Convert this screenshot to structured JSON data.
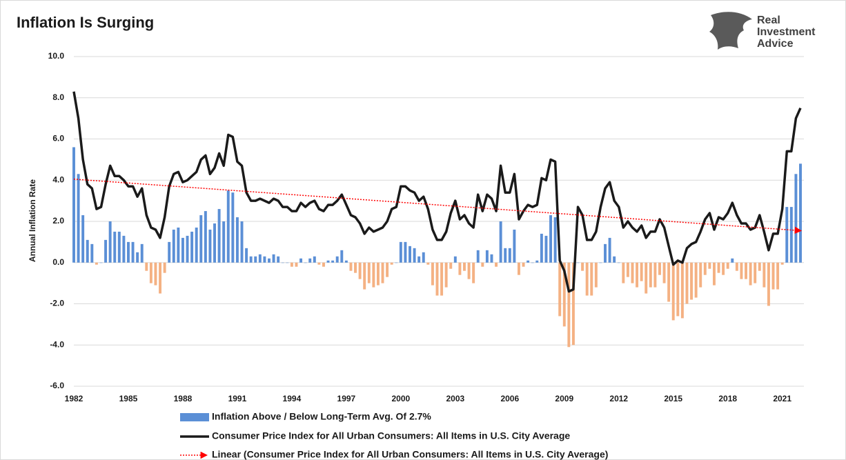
{
  "chart_data": {
    "type": "bar",
    "title": "Inflation Is Surging",
    "logo": [
      "Real",
      "Investment",
      "Advice"
    ],
    "y_label": "Annual Inflation Rate",
    "ylim": [
      -6,
      10
    ],
    "yticks": [
      {
        "value": 10,
        "label": "10.0"
      },
      {
        "value": 8,
        "label": "8.0"
      },
      {
        "value": 6,
        "label": "6.0"
      },
      {
        "value": 4,
        "label": "4.0"
      },
      {
        "value": 2,
        "label": "2.0"
      },
      {
        "value": 0,
        "label": "0.0"
      },
      {
        "value": -2,
        "label": "-2.0"
      },
      {
        "value": -4,
        "label": "-4.0"
      },
      {
        "value": -6,
        "label": "-6.0"
      }
    ],
    "grid": true,
    "categories": [
      "1982",
      null,
      null,
      null,
      null,
      null,
      null,
      null,
      null,
      null,
      null,
      null,
      "1985",
      null,
      null,
      null,
      null,
      null,
      null,
      null,
      null,
      null,
      null,
      null,
      "1988",
      null,
      null,
      null,
      null,
      null,
      null,
      null,
      null,
      null,
      null,
      null,
      "1991",
      null,
      null,
      null,
      null,
      null,
      null,
      null,
      null,
      null,
      null,
      null,
      "1994",
      null,
      null,
      null,
      null,
      null,
      null,
      null,
      null,
      null,
      null,
      null,
      "1997",
      null,
      null,
      null,
      null,
      null,
      null,
      null,
      null,
      null,
      null,
      null,
      "2000",
      null,
      null,
      null,
      null,
      null,
      null,
      null,
      null,
      null,
      null,
      null,
      "2003",
      null,
      null,
      null,
      null,
      null,
      null,
      null,
      null,
      null,
      null,
      null,
      "2006",
      null,
      null,
      null,
      null,
      null,
      null,
      null,
      null,
      null,
      null,
      null,
      "2009",
      null,
      null,
      null,
      null,
      null,
      null,
      null,
      null,
      null,
      null,
      null,
      "2012",
      null,
      null,
      null,
      null,
      null,
      null,
      null,
      null,
      null,
      null,
      null,
      "2015",
      null,
      null,
      null,
      null,
      null,
      null,
      null,
      null,
      null,
      null,
      null,
      "2018",
      null,
      null,
      null,
      null,
      null,
      null,
      null,
      null,
      null,
      null,
      null,
      "2021",
      null,
      null,
      null,
      null
    ],
    "series": [
      {
        "name": "Inflation Above / Below Long-Term Avg. Of 2.7%",
        "type": "bar",
        "color": "#5b8fd6",
        "negative_color": "#f4b183",
        "values": [
          5.6,
          4.3,
          2.3,
          1.1,
          0.9,
          -0.1,
          0.0,
          1.1,
          2.0,
          1.5,
          1.5,
          1.3,
          1.0,
          1.0,
          0.5,
          0.9,
          -0.4,
          -1.0,
          -1.1,
          -1.5,
          -0.5,
          1.0,
          1.6,
          1.7,
          1.2,
          1.3,
          1.5,
          1.7,
          2.3,
          2.5,
          1.6,
          1.9,
          2.6,
          2.0,
          3.5,
          3.4,
          2.2,
          2.0,
          0.7,
          0.3,
          0.3,
          0.4,
          0.3,
          0.2,
          0.4,
          0.3,
          0.0,
          0.0,
          -0.2,
          -0.2,
          0.2,
          0.0,
          0.2,
          0.3,
          -0.1,
          -0.2,
          0.1,
          0.1,
          0.3,
          0.6,
          0.1,
          -0.4,
          -0.5,
          -0.8,
          -1.3,
          -1.0,
          -1.2,
          -1.1,
          -1.0,
          -0.7,
          -0.1,
          0.0,
          1.0,
          1.0,
          0.8,
          0.7,
          0.3,
          0.5,
          -0.1,
          -1.1,
          -1.6,
          -1.6,
          -1.2,
          -0.3,
          0.3,
          -0.6,
          -0.4,
          -0.8,
          -1.0,
          0.6,
          -0.2,
          0.6,
          0.4,
          -0.2,
          2.0,
          0.7,
          0.7,
          1.6,
          -0.6,
          -0.2,
          0.1,
          0.0,
          0.1,
          1.4,
          1.3,
          2.3,
          2.2,
          -2.6,
          -3.1,
          -4.1,
          -4.0,
          0.0,
          -0.4,
          -1.6,
          -1.6,
          -1.2,
          0.0,
          0.9,
          1.2,
          0.3,
          0.0,
          -1.0,
          -0.7,
          -1.0,
          -1.2,
          -0.9,
          -1.5,
          -1.2,
          -1.2,
          -0.6,
          -1.0,
          -1.9,
          -2.8,
          -2.6,
          -2.7,
          -2.0,
          -1.8,
          -1.7,
          -1.2,
          -0.6,
          -0.3,
          -1.1,
          -0.5,
          -0.6,
          -0.3,
          0.2,
          -0.4,
          -0.8,
          -0.8,
          -1.1,
          -1.0,
          -0.4,
          -1.2,
          -2.1,
          -1.3,
          -1.3,
          -0.1,
          2.7,
          2.7,
          4.3,
          4.8
        ]
      },
      {
        "name": "Consumer Price Index for All Urban Consumers: All Items in U.S. City Average",
        "type": "line",
        "color": "#1a1a1a",
        "values": [
          8.3,
          7.0,
          5.0,
          3.8,
          3.6,
          2.6,
          2.7,
          3.8,
          4.7,
          4.2,
          4.2,
          4.0,
          3.7,
          3.7,
          3.2,
          3.6,
          2.3,
          1.7,
          1.6,
          1.2,
          2.2,
          3.7,
          4.3,
          4.4,
          3.9,
          4.0,
          4.2,
          4.4,
          5.0,
          5.2,
          4.3,
          4.6,
          5.3,
          4.7,
          6.2,
          6.1,
          4.9,
          4.7,
          3.4,
          3.0,
          3.0,
          3.1,
          3.0,
          2.9,
          3.1,
          3.0,
          2.7,
          2.7,
          2.5,
          2.5,
          2.9,
          2.7,
          2.9,
          3.0,
          2.6,
          2.5,
          2.8,
          2.8,
          3.0,
          3.3,
          2.8,
          2.3,
          2.2,
          1.9,
          1.4,
          1.7,
          1.5,
          1.6,
          1.7,
          2.0,
          2.6,
          2.7,
          3.7,
          3.7,
          3.5,
          3.4,
          3.0,
          3.2,
          2.6,
          1.6,
          1.1,
          1.1,
          1.5,
          2.4,
          3.0,
          2.1,
          2.3,
          1.9,
          1.7,
          3.3,
          2.5,
          3.3,
          3.1,
          2.5,
          4.7,
          3.4,
          3.4,
          4.3,
          2.1,
          2.5,
          2.8,
          2.7,
          2.8,
          4.1,
          4.0,
          5.0,
          4.9,
          0.1,
          -0.4,
          -1.4,
          -1.3,
          2.7,
          2.3,
          1.1,
          1.1,
          1.5,
          2.7,
          3.6,
          3.9,
          3.0,
          2.7,
          1.7,
          2.0,
          1.7,
          1.5,
          1.8,
          1.2,
          1.5,
          1.5,
          2.1,
          1.7,
          0.8,
          -0.1,
          0.1,
          0.0,
          0.7,
          0.9,
          1.0,
          1.5,
          2.1,
          2.4,
          1.6,
          2.2,
          2.1,
          2.4,
          2.9,
          2.3,
          1.9,
          1.9,
          1.6,
          1.7,
          2.3,
          1.5,
          0.6,
          1.4,
          1.4,
          2.6,
          5.4,
          5.4,
          7.0,
          7.5
        ]
      }
    ],
    "trend": {
      "name": "Linear (Consumer Price Index for All Urban Consumers: All Items in U.S. City Average)",
      "color": "#ff0000",
      "start": 4.05,
      "end": 1.55
    }
  }
}
